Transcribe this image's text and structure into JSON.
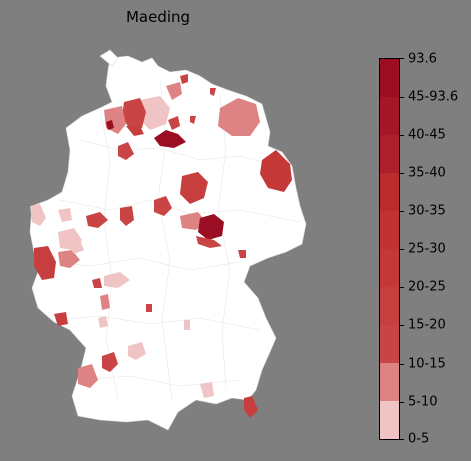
{
  "title": "Maeding",
  "legend": {
    "labels": [
      "0-5",
      "5-10",
      "10-15",
      "15-20",
      "20-25",
      "25-30",
      "30-35",
      "35-40",
      "40-45",
      "45-93.6",
      "93.6"
    ],
    "colors": [
      "#ffffff",
      "#f0c4c4",
      "#dd8383",
      "#c94545",
      "#c73e3e",
      "#c43838",
      "#c13232",
      "#bc2b2b",
      "#ad1f2c",
      "#a51626",
      "#9b0d22"
    ]
  }
}
